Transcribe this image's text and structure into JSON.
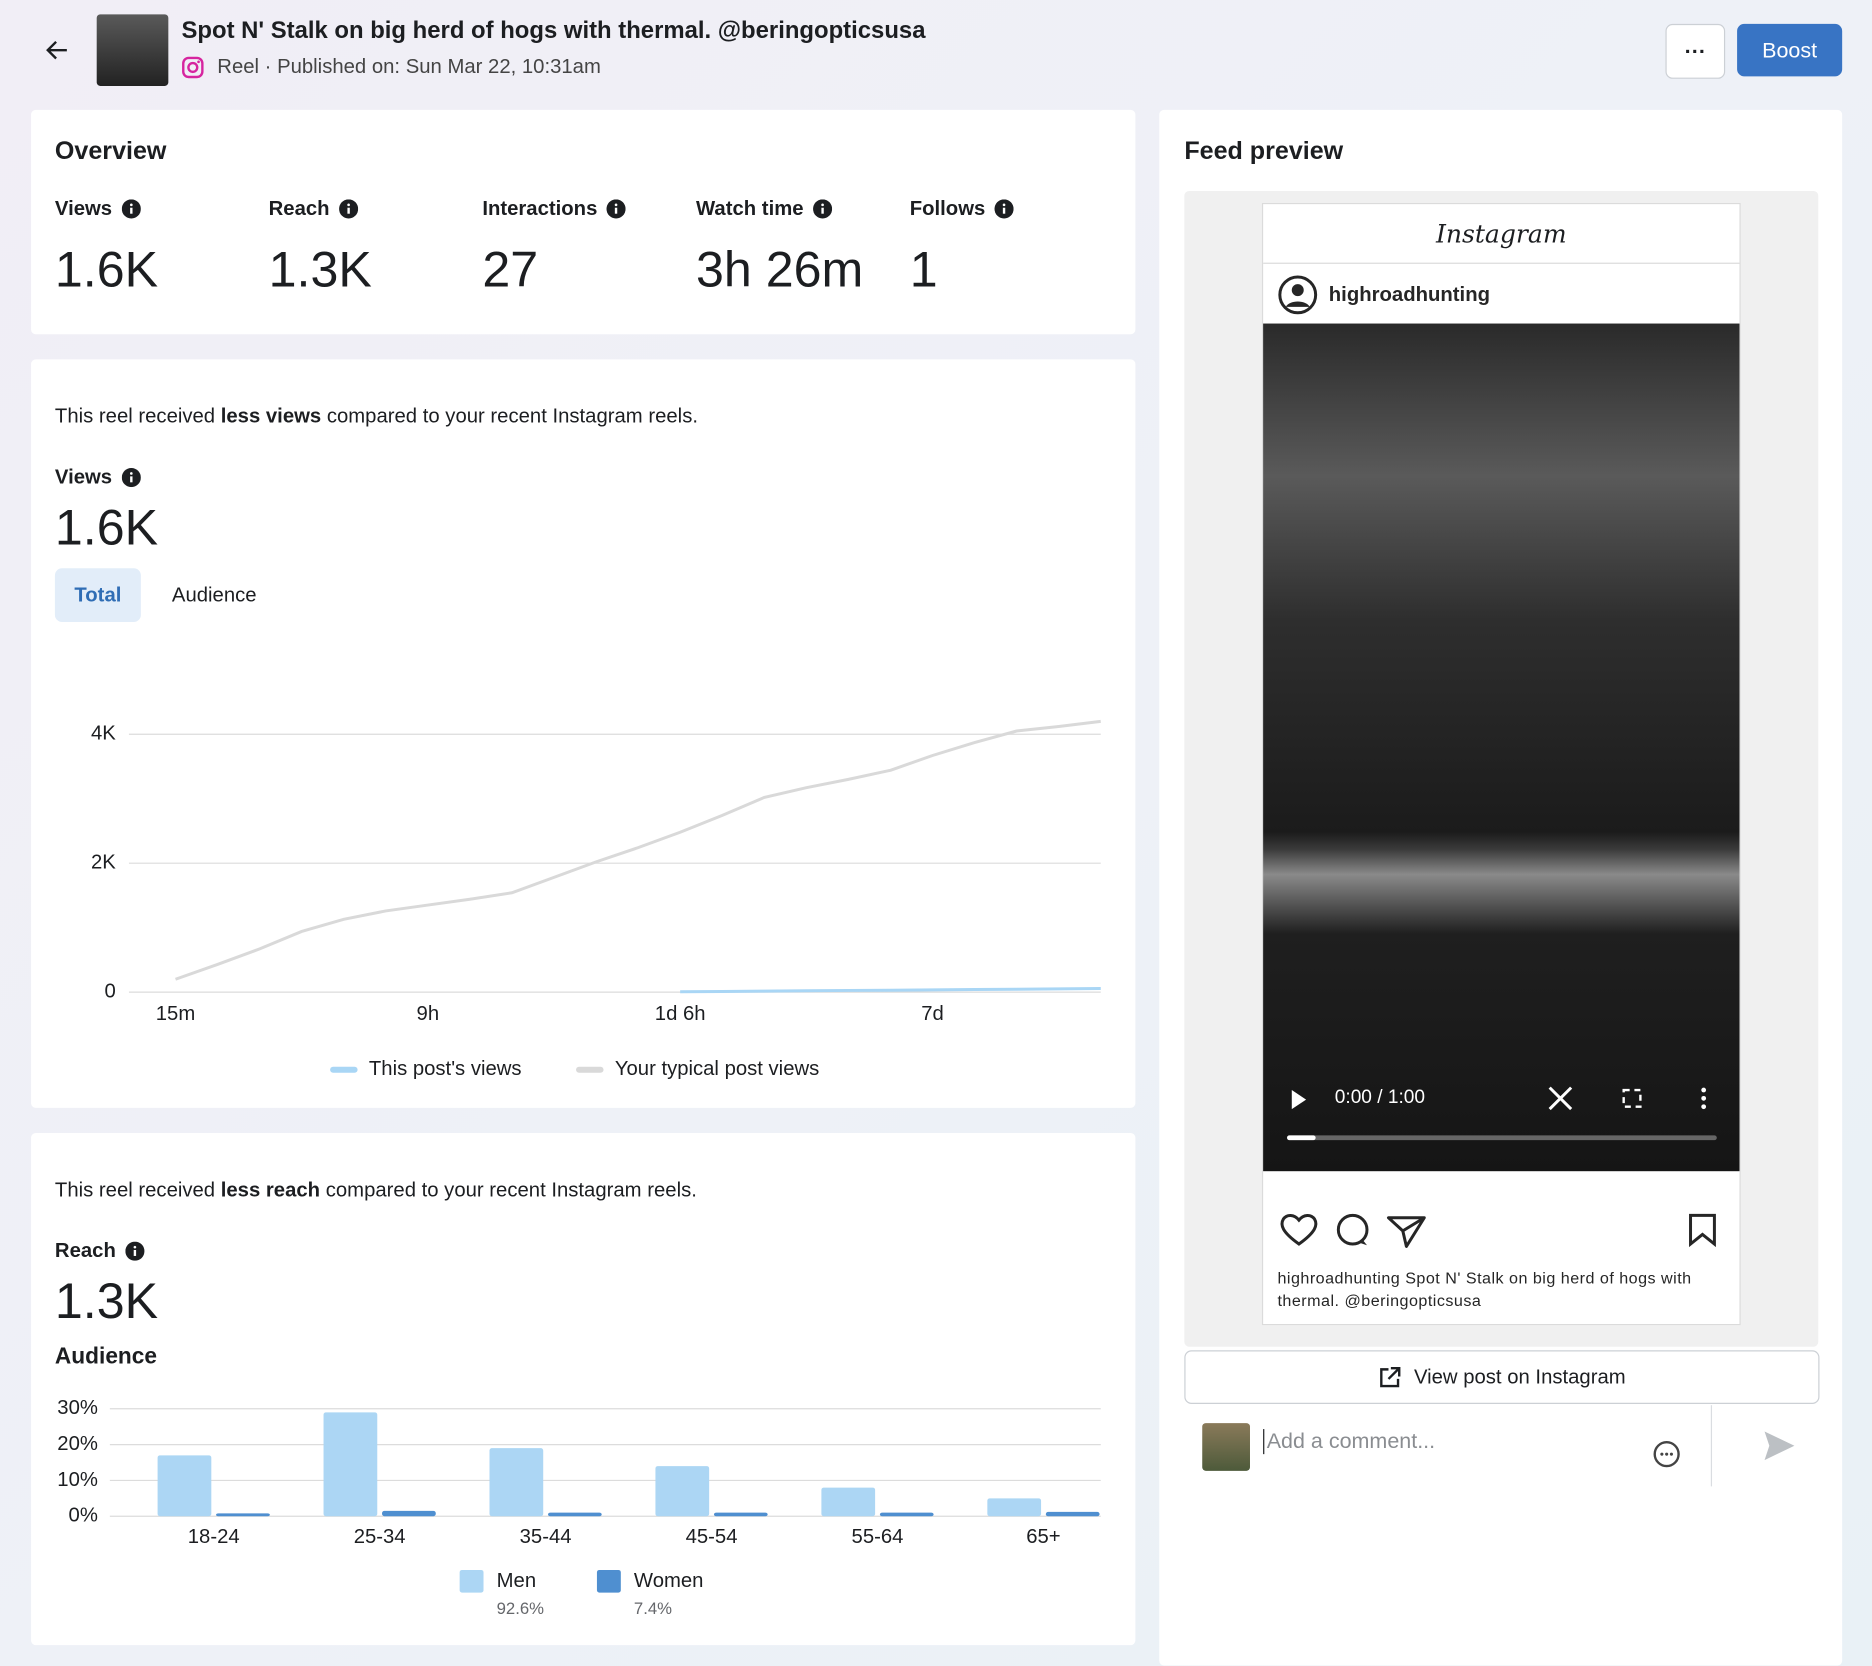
{
  "header": {
    "title": "Spot N' Stalk on big herd of hogs with thermal. @beringopticsusa",
    "subtitle": "Reel · Published on: Sun Mar 22, 10:31am",
    "boost": "Boost"
  },
  "overview": {
    "title": "Overview",
    "metrics": [
      {
        "label": "Views",
        "value": "1.6K"
      },
      {
        "label": "Reach",
        "value": "1.3K"
      },
      {
        "label": "Interactions",
        "value": "27"
      },
      {
        "label": "Watch time",
        "value": "3h 26m"
      },
      {
        "label": "Follows",
        "value": "1"
      }
    ]
  },
  "views_card": {
    "message": {
      "before": "This reel received",
      "bold": "less views",
      "after": "compared to your recent Instagram reels."
    },
    "label": "Views",
    "value": "1.6K",
    "tabs": [
      "Total",
      "Audience"
    ]
  },
  "reach_card": {
    "message": {
      "before": "This reel received",
      "bold": "less reach",
      "after": "compared to your recent Instagram reels."
    },
    "label": "Reach",
    "value": "1.3K",
    "audience_title": "Audience"
  },
  "chart_data": [
    {
      "type": "line",
      "categories": [
        "15m",
        null,
        null,
        null,
        null,
        null,
        "9h",
        null,
        null,
        null,
        null,
        null,
        "1d 6h",
        null,
        null,
        null,
        null,
        null,
        "7d",
        null,
        null,
        null,
        null
      ],
      "ylim": [
        0,
        5000
      ],
      "yticks": [
        0,
        {
          "value": 2000,
          "label": "2K"
        },
        {
          "value": 4000,
          "label": "4K"
        }
      ],
      "grid": true,
      "series": [
        {
          "name": "This post's views",
          "color": "#a9d6f5",
          "values": [
            null,
            null,
            null,
            null,
            null,
            null,
            null,
            null,
            null,
            null,
            null,
            null,
            5,
            10,
            15,
            20,
            25,
            30,
            35,
            40,
            45,
            50,
            55
          ]
        },
        {
          "name": "Your typical post views",
          "color": "#d9d9d9",
          "values": [
            200,
            430,
            670,
            940,
            1130,
            1260,
            1350,
            1440,
            1540,
            1780,
            2020,
            2240,
            2480,
            2740,
            3020,
            3170,
            3300,
            3440,
            3670,
            3870,
            4050,
            4120,
            4200
          ]
        }
      ]
    },
    {
      "type": "bar",
      "categories": [
        "18-24",
        "25-34",
        "35-44",
        "45-54",
        "55-64",
        "65+"
      ],
      "ylim": [
        0,
        30
      ],
      "yticks": [
        {
          "value": 0,
          "label": "0%"
        },
        {
          "value": 10,
          "label": "10%"
        },
        {
          "value": 20,
          "label": "20%"
        },
        {
          "value": 30,
          "label": "30%"
        }
      ],
      "grid": true,
      "series": [
        {
          "name": "Men",
          "share": "92.6%",
          "color": "#acd6f4",
          "values": [
            17,
            29,
            19,
            14,
            8,
            5
          ]
        },
        {
          "name": "Women",
          "share": "7.4%",
          "color": "#4f8fd0",
          "values": [
            0.8,
            1.5,
            1,
            1,
            1,
            1.2
          ]
        }
      ]
    }
  ],
  "feed_preview": {
    "title": "Feed preview",
    "platform": "Instagram",
    "username": "highroadhunting",
    "video_time": "0:00 / 1:00",
    "caption_user": "highroadhunting",
    "caption": "Spot N' Stalk on big herd of hogs with thermal. @beringopticsusa",
    "view_button": "View post on Instagram",
    "comment_placeholder": "Add a comment..."
  }
}
